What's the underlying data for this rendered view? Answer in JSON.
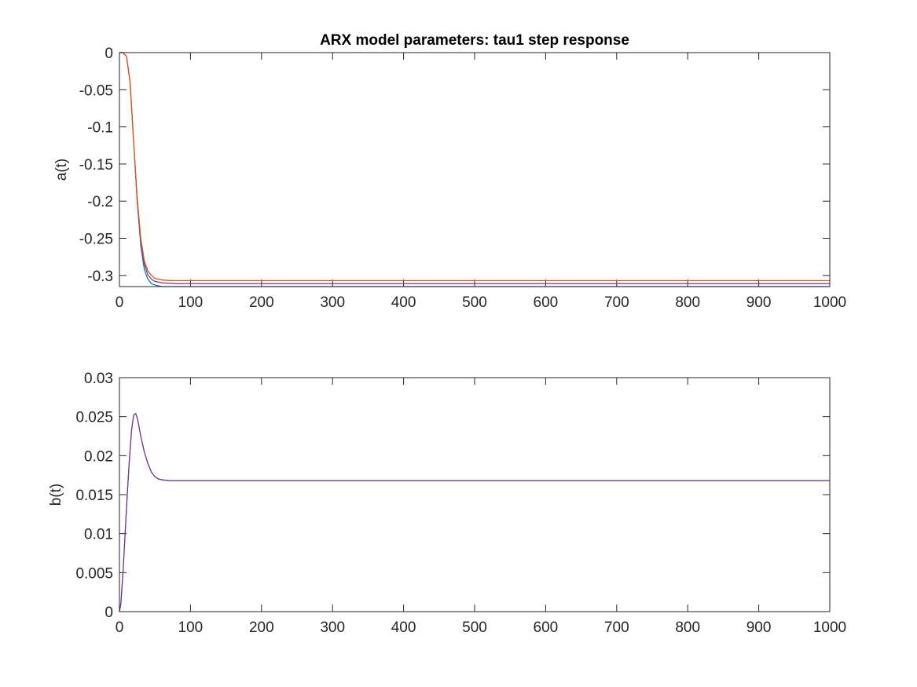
{
  "chart_data": [
    {
      "type": "line",
      "title": "ARX model parameters: tau1 step response",
      "xlabel": "",
      "ylabel": "a(t)",
      "xlim": [
        0,
        1000
      ],
      "ylim": [
        -0.315,
        0
      ],
      "xticks": [
        0,
        100,
        200,
        300,
        400,
        500,
        600,
        700,
        800,
        900,
        1000
      ],
      "xtick_labels": [
        "0",
        "100",
        "200",
        "300",
        "400",
        "500",
        "600",
        "700",
        "800",
        "900",
        "1000"
      ],
      "yticks": [
        0,
        -0.05,
        -0.1,
        -0.15,
        -0.2,
        -0.25,
        -0.3
      ],
      "ytick_labels": [
        "0",
        "-0.05",
        "-0.1",
        "-0.15",
        "-0.2",
        "-0.25",
        "-0.3"
      ],
      "grid": false,
      "series": [
        {
          "color": "#0072BD",
          "x": [
            0,
            5,
            10,
            15,
            20,
            25,
            30,
            35,
            40,
            45,
            50,
            60,
            70,
            80,
            100,
            200,
            400,
            600,
            800,
            1000
          ],
          "y": [
            0,
            0,
            -0.005,
            -0.04,
            -0.12,
            -0.2,
            -0.26,
            -0.292,
            -0.305,
            -0.311,
            -0.313,
            -0.315,
            -0.315,
            -0.315,
            -0.315,
            -0.315,
            -0.315,
            -0.315,
            -0.315,
            -0.315
          ]
        },
        {
          "color": "#7E2F8E",
          "x": [
            0,
            5,
            10,
            15,
            20,
            25,
            30,
            35,
            40,
            45,
            50,
            60,
            70,
            80,
            100,
            200,
            400,
            600,
            800,
            1000
          ],
          "y": [
            0,
            0,
            -0.005,
            -0.04,
            -0.12,
            -0.2,
            -0.255,
            -0.285,
            -0.299,
            -0.305,
            -0.308,
            -0.31,
            -0.3105,
            -0.311,
            -0.311,
            -0.311,
            -0.311,
            -0.311,
            -0.311,
            -0.311
          ]
        },
        {
          "color": "#EDB120",
          "x": [
            0,
            5,
            10,
            15,
            20,
            25,
            30,
            35,
            40,
            45,
            50,
            60,
            70,
            80,
            100,
            200,
            400,
            600,
            800,
            1000
          ],
          "y": [
            0,
            0,
            -0.005,
            -0.04,
            -0.12,
            -0.195,
            -0.25,
            -0.28,
            -0.294,
            -0.3,
            -0.304,
            -0.306,
            -0.3065,
            -0.307,
            -0.307,
            -0.307,
            -0.307,
            -0.307,
            -0.307,
            -0.307
          ]
        },
        {
          "color": "#D95319",
          "x": [
            0,
            5,
            10,
            15,
            20,
            25,
            30,
            35,
            40,
            45,
            50,
            60,
            70,
            80,
            100,
            200,
            400,
            600,
            800,
            1000
          ],
          "y": [
            0,
            0,
            -0.005,
            -0.04,
            -0.12,
            -0.195,
            -0.25,
            -0.28,
            -0.294,
            -0.3,
            -0.304,
            -0.306,
            -0.307,
            -0.307,
            -0.307,
            -0.307,
            -0.307,
            -0.307,
            -0.307,
            -0.307
          ]
        }
      ]
    },
    {
      "type": "line",
      "title": "",
      "xlabel": "",
      "ylabel": "b(t)",
      "xlim": [
        0,
        1000
      ],
      "ylim": [
        0,
        0.03
      ],
      "xticks": [
        0,
        100,
        200,
        300,
        400,
        500,
        600,
        700,
        800,
        900,
        1000
      ],
      "xtick_labels": [
        "0",
        "100",
        "200",
        "300",
        "400",
        "500",
        "600",
        "700",
        "800",
        "900",
        "1000"
      ],
      "yticks": [
        0,
        0.005,
        0.01,
        0.015,
        0.02,
        0.025,
        0.03
      ],
      "ytick_labels": [
        "0",
        "0.005",
        "0.01",
        "0.015",
        "0.02",
        "0.025",
        "0.03"
      ],
      "grid": false,
      "series": [
        {
          "color": "#0072BD",
          "x": [
            0,
            2,
            5,
            8,
            11,
            14,
            17,
            20,
            23,
            26,
            30,
            35,
            40,
            45,
            50,
            55,
            60,
            70,
            80,
            90,
            100,
            150,
            200,
            400,
            600,
            800,
            1000
          ],
          "y": [
            0,
            0.001,
            0.005,
            0.01,
            0.015,
            0.0195,
            0.0232,
            0.0252,
            0.0254,
            0.0245,
            0.0225,
            0.0205,
            0.019,
            0.0179,
            0.0173,
            0.017,
            0.0169,
            0.0168,
            0.0168,
            0.0168,
            0.0168,
            0.0168,
            0.0168,
            0.0168,
            0.0168,
            0.0168,
            0.0168
          ]
        },
        {
          "color": "#7E2F8E",
          "x": [
            0,
            2,
            5,
            8,
            11,
            14,
            17,
            20,
            23,
            26,
            30,
            35,
            40,
            45,
            50,
            55,
            60,
            70,
            80,
            90,
            100,
            150,
            200,
            400,
            600,
            800,
            1000
          ],
          "y": [
            0,
            0.001,
            0.005,
            0.01,
            0.015,
            0.0195,
            0.0232,
            0.0252,
            0.0254,
            0.0245,
            0.0225,
            0.0205,
            0.019,
            0.0179,
            0.0173,
            0.017,
            0.0169,
            0.0168,
            0.0168,
            0.0168,
            0.0168,
            0.0168,
            0.0168,
            0.0168,
            0.0168,
            0.0168,
            0.0168
          ]
        }
      ]
    }
  ]
}
